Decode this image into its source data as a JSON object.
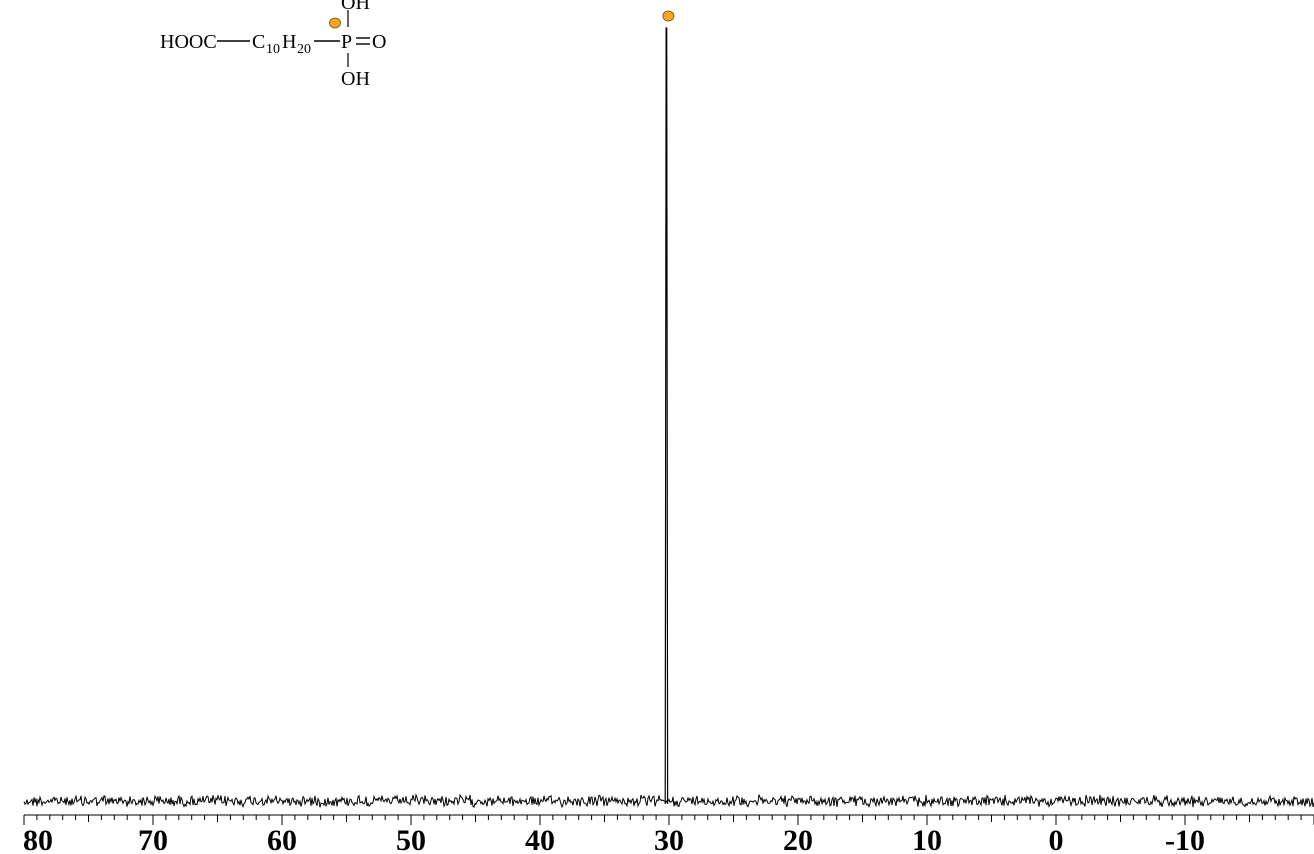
{
  "chart_data": {
    "type": "line",
    "title": "",
    "xlabel": "",
    "ylabel": "",
    "x_axis_reversed": true,
    "xlim": [
      80,
      -20
    ],
    "x_ticks": [
      80,
      70,
      60,
      50,
      40,
      30,
      20,
      10,
      0,
      -10
    ],
    "x_tick_labels": [
      "80",
      "70",
      "60",
      "50",
      "40",
      "30",
      "20",
      "10",
      "0",
      "-10"
    ],
    "grid": false,
    "legend": "none",
    "series": [
      {
        "peaks": [
          {
            "x": 30.2,
            "y": 1.0,
            "marker": "orange-dot"
          }
        ],
        "baseline_noise": true
      }
    ],
    "annotation": {
      "structure": {
        "left_group": "HOOC",
        "chain_c": "C",
        "chain_c_sub": "10",
        "chain_h": "H",
        "chain_h_sub": "20",
        "center_atom": "P",
        "double_bond_atom": "O",
        "top_group": "OH",
        "bottom_group": "OH"
      },
      "marker_color": "#f5a623"
    },
    "colors": {
      "line": "#000000",
      "marker": "#f5a623"
    }
  }
}
